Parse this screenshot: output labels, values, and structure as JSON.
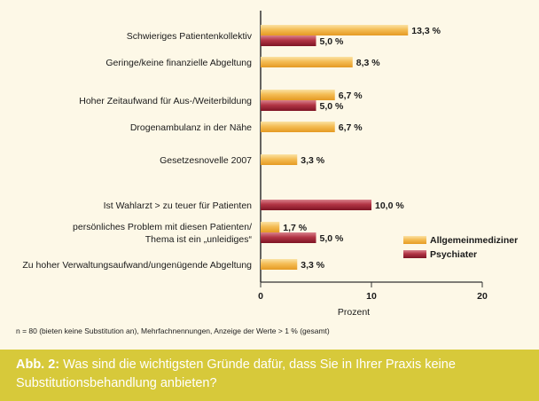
{
  "chart_data": {
    "type": "bar",
    "orientation": "horizontal",
    "categories": [
      [
        "Schwieriges Patientenkollektiv"
      ],
      [
        "Geringe/keine finanzielle Abgeltung"
      ],
      [
        "Hoher Zeitaufwand für Aus-/Weiterbildung"
      ],
      [
        "Drogenambulanz in der Nähe"
      ],
      [
        "Gesetzesnovelle 2007"
      ],
      [
        "Ist Wahlarzt > zu teuer für Patienten"
      ],
      [
        "persönliches Problem mit diesen Patienten/",
        "Thema ist ein „unleidiges“"
      ],
      [
        "Zu hoher Verwaltungsaufwand/ungenügende Abgeltung"
      ]
    ],
    "series": [
      {
        "name": "Allgemeinmediziner",
        "color": "#f2b648",
        "values": [
          13.3,
          8.3,
          6.7,
          6.7,
          3.3,
          null,
          1.7,
          3.3
        ],
        "labels": [
          "13,3 %",
          "8,3 %",
          "6,7 %",
          "6,7 %",
          "3,3 %",
          null,
          "1,7 %",
          "3,3 %"
        ]
      },
      {
        "name": "Psychiater",
        "color": "#a8283a",
        "values": [
          5.0,
          null,
          5.0,
          null,
          null,
          10.0,
          5.0,
          null
        ],
        "labels": [
          "5,0 %",
          null,
          "5,0 %",
          null,
          null,
          "10,0 %",
          "5,0 %",
          null
        ]
      }
    ],
    "x_ticks": [
      0,
      10,
      20
    ],
    "xlim": [
      0,
      20
    ],
    "xlabel": "Prozent",
    "legend_position": "right"
  },
  "footnote": "n = 80 (bieten keine Substitution an), Mehrfachnennungen, Anzeige der Werte > 1 % (gesamt)",
  "caption": {
    "lead": "Abb. 2:",
    "text": "Was sind die wichtigsten Gründe dafür, dass Sie in Ihrer Praxis keine Substitutionsbehandlung anbieten?"
  }
}
